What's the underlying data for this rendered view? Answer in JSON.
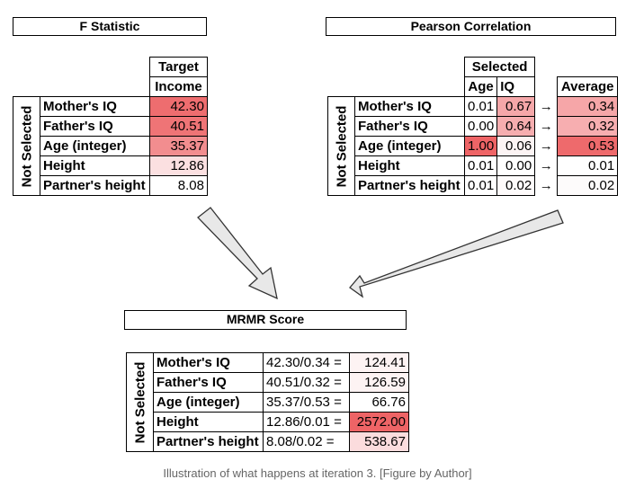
{
  "f_stat": {
    "title": "F Statistic",
    "col_header_1": "Target",
    "col_header_2": "Income",
    "side_label": "Not Selected",
    "rows": [
      {
        "label": "Mother's IQ",
        "value": "42.30",
        "color": "#ee6d6f"
      },
      {
        "label": "Father's IQ",
        "value": "40.51",
        "color": "#ef7476"
      },
      {
        "label": "Age (integer)",
        "value": "35.37",
        "color": "#f28d8f"
      },
      {
        "label": "Height",
        "value": "12.86",
        "color": "#fbe0e1"
      },
      {
        "label": "Partner's height",
        "value": "8.08",
        "color": "#ffffff"
      }
    ]
  },
  "pearson": {
    "title": "Pearson Correlation",
    "selected_header": "Selected",
    "col_age": "Age",
    "col_iq": "IQ",
    "avg_header": "Average",
    "side_label": "Not Selected",
    "arrow_symbol": "→",
    "rows": [
      {
        "label": "Mother's IQ",
        "age": "0.01",
        "iq": "0.67",
        "age_color": "#ffffff",
        "iq_color": "#f5a7a9",
        "avg": "0.34",
        "avg_color": "#f6a6a8"
      },
      {
        "label": "Father's IQ",
        "age": "0.00",
        "iq": "0.64",
        "age_color": "#ffffff",
        "iq_color": "#f6adaf",
        "avg": "0.32",
        "avg_color": "#f7aeb0"
      },
      {
        "label": "Age (integer)",
        "age": "1.00",
        "iq": "0.06",
        "age_color": "#ee6466",
        "iq_color": "#fcf4f4",
        "avg": "0.53",
        "avg_color": "#ee6a6c"
      },
      {
        "label": "Height",
        "age": "0.01",
        "iq": "0.00",
        "age_color": "#ffffff",
        "iq_color": "#ffffff",
        "avg": "0.01",
        "avg_color": "#ffffff"
      },
      {
        "label": "Partner's height",
        "age": "0.01",
        "iq": "0.02",
        "age_color": "#ffffff",
        "iq_color": "#fefbfb",
        "avg": "0.02",
        "avg_color": "#fdfbfb"
      }
    ]
  },
  "mrmr": {
    "title": "MRMR Score",
    "side_label": "Not Selected",
    "rows": [
      {
        "label": "Mother's IQ",
        "formula": "42.30/0.34 =",
        "score": "124.41",
        "color": "#fdf3f3"
      },
      {
        "label": "Father's IQ",
        "formula": "40.51/0.32 =",
        "score": "126.59",
        "color": "#fdf3f3"
      },
      {
        "label": "Age (integer)",
        "formula": "35.37/0.53 =",
        "score": "66.76",
        "color": "#ffffff"
      },
      {
        "label": "Height",
        "formula": "12.86/0.01 =",
        "score": "2572.00",
        "color": "#ee6466"
      },
      {
        "label": "Partner's height",
        "formula": "8.08/0.02 =",
        "score": "538.67",
        "color": "#fbdcdd"
      }
    ]
  },
  "caption": "Illustration of what happens at iteration 3. [Figure by Author]"
}
